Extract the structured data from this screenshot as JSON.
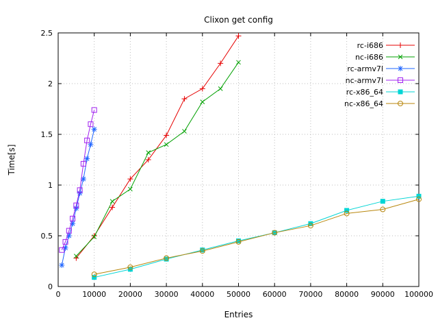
{
  "chart_data": {
    "type": "line",
    "title": "Clixon get config",
    "xlabel": "Entries",
    "ylabel": "Time[s]",
    "xlim": [
      0,
      100000
    ],
    "ylim": [
      0,
      2.5
    ],
    "grid": true,
    "legend_position": "top-right",
    "xticks": {
      "values": [
        0,
        10000,
        20000,
        30000,
        40000,
        50000,
        60000,
        70000,
        80000,
        90000,
        100000
      ],
      "labels": [
        "0",
        "10000",
        "20000",
        "30000",
        "40000",
        "50000",
        "60000",
        "70000",
        "80000",
        "90000",
        "100000"
      ]
    },
    "yticks": {
      "values": [
        0,
        0.5,
        1,
        1.5,
        2,
        2.5
      ],
      "labels": [
        "0",
        "0.5",
        "1",
        "1.5",
        "2",
        "2.5"
      ]
    },
    "colors": {
      "grid": "#bbbbbb",
      "border": "#000000",
      "text": "#000000"
    },
    "series": [
      {
        "name": "rc-i686",
        "color": "#e60000",
        "marker": "plus",
        "points": [
          [
            5000,
            0.28
          ],
          [
            10000,
            0.5
          ],
          [
            15000,
            0.78
          ],
          [
            20000,
            1.06
          ],
          [
            25000,
            1.25
          ],
          [
            30000,
            1.49
          ],
          [
            35000,
            1.85
          ],
          [
            40000,
            1.95
          ],
          [
            45000,
            2.2
          ],
          [
            50000,
            2.47
          ]
        ]
      },
      {
        "name": "nc-i686",
        "color": "#00a000",
        "marker": "cross",
        "points": [
          [
            5000,
            0.3
          ],
          [
            10000,
            0.49
          ],
          [
            15000,
            0.84
          ],
          [
            20000,
            0.96
          ],
          [
            25000,
            1.32
          ],
          [
            30000,
            1.4
          ],
          [
            35000,
            1.53
          ],
          [
            40000,
            1.82
          ],
          [
            45000,
            1.95
          ],
          [
            50000,
            2.21
          ]
        ]
      },
      {
        "name": "rc-armv7l",
        "color": "#1e64ff",
        "marker": "asterisk",
        "points": [
          [
            1000,
            0.21
          ],
          [
            2000,
            0.38
          ],
          [
            3000,
            0.5
          ],
          [
            4000,
            0.62
          ],
          [
            5000,
            0.77
          ],
          [
            6000,
            0.92
          ],
          [
            7000,
            1.06
          ],
          [
            8000,
            1.26
          ],
          [
            9000,
            1.4
          ],
          [
            10000,
            1.55
          ]
        ]
      },
      {
        "name": "nc-armv7l",
        "color": "#a020f0",
        "marker": "square-open",
        "points": [
          [
            1000,
            0.36
          ],
          [
            2000,
            0.44
          ],
          [
            3000,
            0.55
          ],
          [
            4000,
            0.67
          ],
          [
            5000,
            0.8
          ],
          [
            6000,
            0.95
          ],
          [
            7000,
            1.21
          ],
          [
            8000,
            1.44
          ],
          [
            9000,
            1.6
          ],
          [
            10000,
            1.74
          ]
        ]
      },
      {
        "name": "rc-x86_64",
        "color": "#00d5d5",
        "marker": "square-filled",
        "points": [
          [
            10000,
            0.09
          ],
          [
            20000,
            0.17
          ],
          [
            30000,
            0.27
          ],
          [
            40000,
            0.36
          ],
          [
            50000,
            0.45
          ],
          [
            60000,
            0.53
          ],
          [
            70000,
            0.62
          ],
          [
            80000,
            0.75
          ],
          [
            90000,
            0.84
          ],
          [
            100000,
            0.89
          ]
        ]
      },
      {
        "name": "nc-x86_64",
        "color": "#b8860b",
        "marker": "circle-open",
        "points": [
          [
            10000,
            0.12
          ],
          [
            20000,
            0.19
          ],
          [
            30000,
            0.28
          ],
          [
            40000,
            0.35
          ],
          [
            50000,
            0.44
          ],
          [
            60000,
            0.53
          ],
          [
            70000,
            0.6
          ],
          [
            80000,
            0.72
          ],
          [
            90000,
            0.76
          ],
          [
            100000,
            0.86
          ]
        ]
      }
    ]
  }
}
